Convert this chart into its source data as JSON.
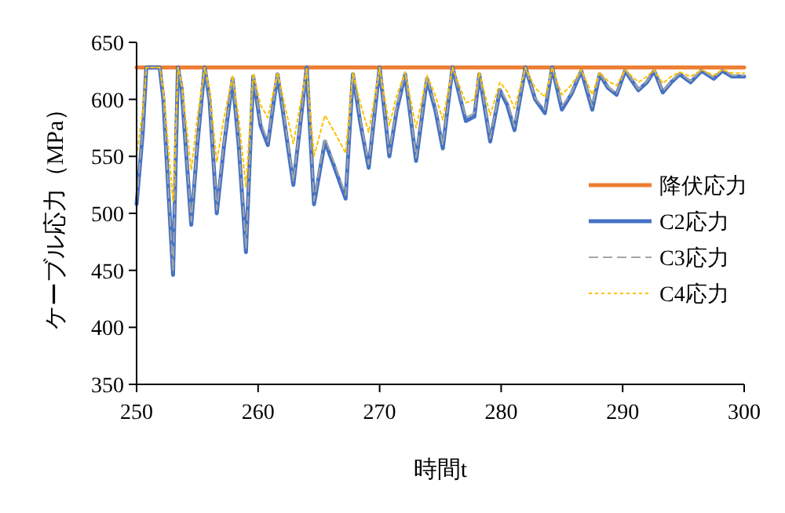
{
  "chart_data": {
    "type": "line",
    "xlabel": "時間t",
    "ylabel": "ケーブル応力（MPa）",
    "xlim": [
      250,
      300
    ],
    "xticks": [
      250,
      260,
      270,
      280,
      290,
      300
    ],
    "ylim": [
      350,
      650
    ],
    "yticks": [
      350,
      400,
      450,
      500,
      550,
      600,
      650
    ],
    "grid": false,
    "legend": "right",
    "series": [
      {
        "name": "降伏応力",
        "color": "#ed7d31",
        "line_style": "solid",
        "x": [
          250,
          300
        ],
        "values": [
          628,
          628
        ]
      },
      {
        "name": "C2応力",
        "color": "#4472c4",
        "line_style": "solid",
        "x": [
          250,
          250.5,
          250.8,
          251.9,
          252.2,
          253,
          253.4,
          253.7,
          254.5,
          255,
          255.6,
          256,
          256.6,
          257.2,
          257.9,
          258.4,
          259,
          259.6,
          260.2,
          260.8,
          261.6,
          262.3,
          262.9,
          264,
          264.6,
          265.5,
          266.3,
          267.2,
          267.8,
          268.4,
          269.1,
          270,
          270.8,
          271.4,
          272.1,
          273,
          273.9,
          274.6,
          275.2,
          276,
          277.1,
          277.8,
          278.2,
          279.1,
          279.9,
          280.5,
          281.1,
          282,
          282.8,
          283.6,
          284.2,
          285,
          285.8,
          286.6,
          287.5,
          288.1,
          288.8,
          289.5,
          290.2,
          291.3,
          292,
          292.6,
          293.3,
          294,
          294.7,
          295.6,
          296.5,
          297.5,
          298.2,
          299,
          299.5,
          300
        ],
        "values": [
          508,
          570,
          628,
          628,
          600,
          446,
          628,
          610,
          490,
          560,
          628,
          600,
          500,
          560,
          618,
          560,
          466,
          620,
          577,
          560,
          622,
          570,
          525,
          628,
          508,
          563,
          540,
          513,
          622,
          580,
          540,
          628,
          550,
          590,
          622,
          546,
          618,
          590,
          557,
          628,
          581,
          585,
          622,
          563,
          608,
          595,
          573,
          628,
          600,
          588,
          628,
          591,
          605,
          625,
          591,
          622,
          610,
          604,
          625,
          608,
          615,
          625,
          606,
          615,
          622,
          615,
          625,
          618,
          625,
          620,
          620,
          620
        ]
      },
      {
        "name": "C3応力",
        "color": "#a5a5a5",
        "line_style": "dashed",
        "x": [
          250,
          250.5,
          250.8,
          251.9,
          252.2,
          253,
          253.4,
          253.7,
          254.5,
          255,
          255.6,
          256,
          256.6,
          257.2,
          257.9,
          258.4,
          259,
          259.6,
          260.2,
          260.8,
          261.6,
          262.3,
          262.9,
          264,
          264.6,
          265.5,
          266.3,
          267.2,
          267.8,
          268.4,
          269.1,
          270,
          270.8,
          271.4,
          272.1,
          273,
          273.9,
          274.6,
          275.2,
          276,
          277.1,
          277.8,
          278.2,
          279.1,
          279.9,
          280.5,
          281.1,
          282,
          282.8,
          283.6,
          284.2,
          285,
          285.8,
          286.6,
          287.5,
          288.1,
          288.8,
          289.5,
          290.2,
          291.3,
          292,
          292.6,
          293.3,
          294,
          294.7,
          295.6,
          296.5,
          297.5,
          298.2,
          299,
          299.5,
          300
        ],
        "values": [
          511,
          573,
          628,
          628,
          601,
          449,
          628,
          611,
          493,
          563,
          628,
          601,
          503,
          563,
          619,
          563,
          469,
          621,
          580,
          563,
          623,
          573,
          528,
          628,
          511,
          566,
          543,
          516,
          623,
          583,
          543,
          628,
          553,
          593,
          623,
          549,
          619,
          593,
          560,
          628,
          584,
          588,
          623,
          566,
          609,
          598,
          576,
          628,
          601,
          591,
          628,
          594,
          606,
          626,
          594,
          623,
          611,
          605,
          626,
          609,
          616,
          626,
          607,
          616,
          623,
          616,
          626,
          619,
          626,
          621,
          621,
          621
        ]
      },
      {
        "name": "C4応力",
        "color": "#ffc000",
        "line_style": "dotted",
        "x": [
          250,
          250.5,
          250.8,
          251.9,
          252.2,
          253,
          253.4,
          253.7,
          254.5,
          255,
          255.6,
          256,
          256.6,
          257.2,
          257.9,
          258.4,
          259,
          259.6,
          260.2,
          260.8,
          261.6,
          262.3,
          262.9,
          264,
          264.6,
          265.5,
          266.3,
          267.2,
          267.8,
          268.4,
          269.1,
          270,
          270.8,
          271.4,
          272.1,
          273,
          273.9,
          274.6,
          275.2,
          276,
          277.1,
          277.8,
          278.2,
          279.1,
          279.9,
          280.5,
          281.1,
          282,
          282.8,
          283.6,
          284.2,
          285,
          285.8,
          286.6,
          287.5,
          288.1,
          288.8,
          289.5,
          290.2,
          291.3,
          292,
          292.6,
          293.3,
          294,
          294.7,
          295.6,
          296.5,
          297.5,
          298.2,
          299,
          299.5,
          300
        ],
        "values": [
          550,
          590,
          628,
          628,
          610,
          510,
          628,
          616,
          538,
          584,
          628,
          610,
          545,
          584,
          621,
          584,
          523,
          623,
          595,
          584,
          624,
          590,
          561,
          628,
          550,
          586,
          571,
          553,
          624,
          597,
          571,
          628,
          577,
          603,
          624,
          575,
          621,
          603,
          582,
          628,
          597,
          600,
          624,
          586,
          615,
          607,
          592,
          628,
          610,
          602,
          628,
          604,
          613,
          626,
          604,
          624,
          616,
          612,
          626,
          615,
          620,
          626,
          614,
          620,
          624,
          620,
          626,
          621,
          626,
          623,
          623,
          623
        ]
      }
    ]
  }
}
